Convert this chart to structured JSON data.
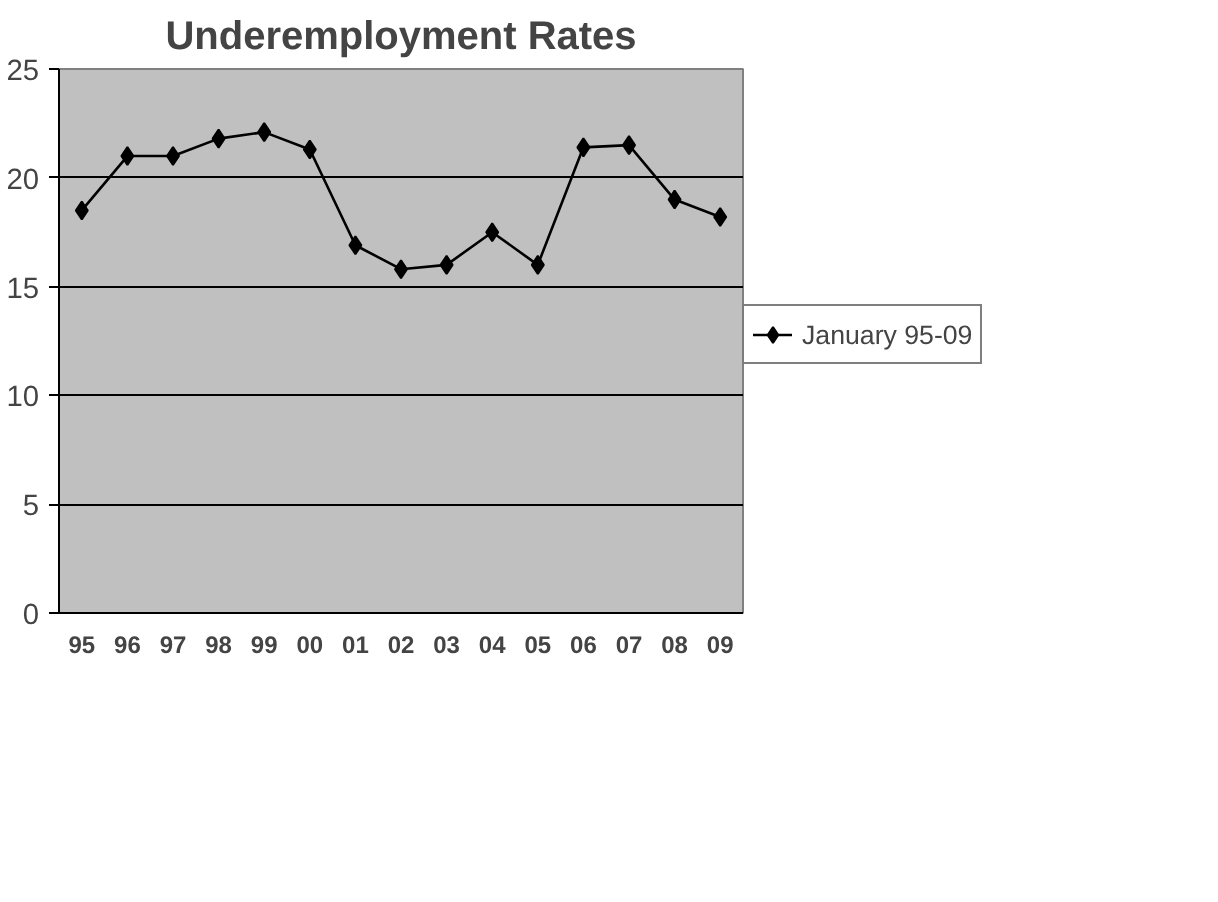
{
  "chart_data": {
    "type": "line",
    "title": "Underemployment Rates",
    "categories": [
      "95",
      "96",
      "97",
      "98",
      "99",
      "00",
      "01",
      "02",
      "03",
      "04",
      "05",
      "06",
      "07",
      "08",
      "09"
    ],
    "series": [
      {
        "name": "January 95-09",
        "color": "#000000",
        "values": [
          18.5,
          21.0,
          21.0,
          21.8,
          22.1,
          21.3,
          16.9,
          15.8,
          16.0,
          17.5,
          16.0,
          21.4,
          21.5,
          19.0,
          18.2
        ]
      }
    ],
    "ylim": [
      0,
      25
    ],
    "yticks": [
      0,
      5,
      10,
      15,
      20,
      25
    ],
    "grid": "y",
    "legend": "right",
    "marker": "diamond",
    "line_style": "solid"
  }
}
